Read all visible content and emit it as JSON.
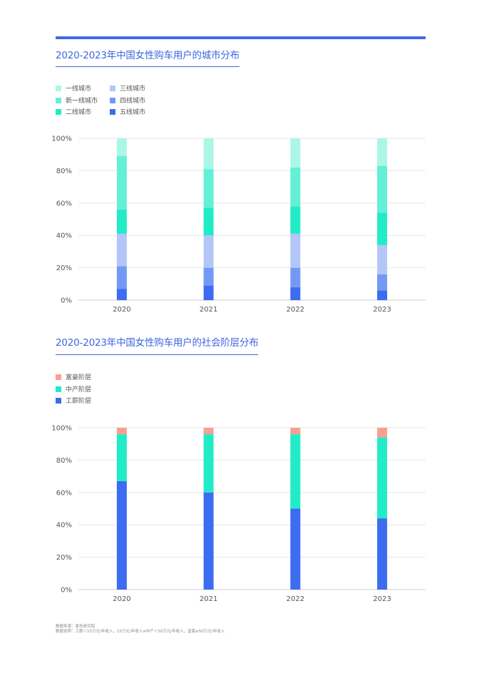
{
  "chart_data": [
    {
      "type": "bar",
      "stacked": true,
      "title": "2020-2023年中国女性购车用户的城市分布",
      "categories": [
        "2020",
        "2021",
        "2022",
        "2023"
      ],
      "ylim": [
        0,
        100
      ],
      "yticks": [
        "0%",
        "20%",
        "40%",
        "60%",
        "80%",
        "100%"
      ],
      "grid": true,
      "legend_position": "top-left",
      "legend_columns": 2,
      "series": [
        {
          "name": "五线城市",
          "color": "#3c6cf0",
          "values": [
            7,
            9,
            8,
            6
          ]
        },
        {
          "name": "四线城市",
          "color": "#7399f5",
          "values": [
            14,
            11,
            12,
            10
          ]
        },
        {
          "name": "三线城市",
          "color": "#b2c7f8",
          "values": [
            20,
            20,
            21,
            18
          ]
        },
        {
          "name": "二线城市",
          "color": "#22ebc8",
          "values": [
            15,
            17,
            17,
            20
          ]
        },
        {
          "name": "新一线城市",
          "color": "#63f0d6",
          "values": [
            33,
            24,
            24,
            29
          ]
        },
        {
          "name": "一线城市",
          "color": "#aaf7e8",
          "values": [
            11,
            19,
            18,
            17
          ]
        }
      ],
      "legend_order": [
        "一线城市",
        "新一线城市",
        "二线城市",
        "三线城市",
        "四线城市",
        "五线城市"
      ]
    },
    {
      "type": "bar",
      "stacked": true,
      "title": "2020-2023年中国女性购车用户的社会阶层分布",
      "categories": [
        "2020",
        "2021",
        "2022",
        "2023"
      ],
      "ylim": [
        0,
        100
      ],
      "yticks": [
        "0%",
        "20%",
        "40%",
        "60%",
        "80%",
        "100%"
      ],
      "grid": true,
      "legend_position": "top-left",
      "legend_columns": 1,
      "series": [
        {
          "name": "工薪阶层",
          "color": "#3c6cf0",
          "values": [
            67,
            60,
            50,
            44
          ]
        },
        {
          "name": "中产阶层",
          "color": "#22ebc8",
          "values": [
            29,
            36,
            46,
            50
          ]
        },
        {
          "name": "富豪阶层",
          "color": "#f7a092",
          "values": [
            4,
            4,
            4,
            6
          ]
        }
      ],
      "legend_order": [
        "富豪阶层",
        "中产阶层",
        "工薪阶层"
      ]
    }
  ],
  "footnote": {
    "source": "数据来源：易车研究院",
    "note": "数据说明：工薪＜15万元/年收入，15万元/年收入≤中产＜50万元/年收入，富豪≥50万元/年收入"
  }
}
